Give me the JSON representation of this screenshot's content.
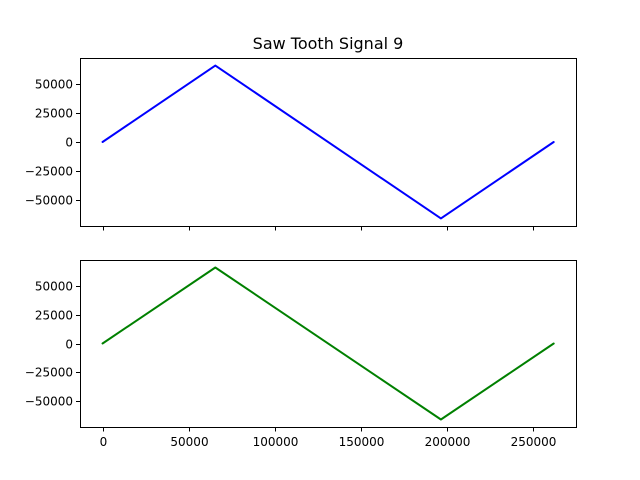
{
  "chart_data": {
    "type": "line",
    "title": "Saw Tooth Signal 9",
    "xlim": [
      -13100,
      275100
    ],
    "x_ticks": [
      0,
      50000,
      100000,
      150000,
      200000,
      250000
    ],
    "x_tick_labels": [
      "0",
      "50000",
      "100000",
      "150000",
      "200000",
      "250000"
    ],
    "y_ticks": [
      50000,
      25000,
      0,
      -25000,
      -50000
    ],
    "y_tick_labels": [
      "50000",
      "25000",
      "0",
      "−25000",
      "−50000"
    ],
    "subplots": [
      {
        "ylim": [
          -72000,
          72000
        ],
        "series": [
          {
            "color": "#0000ff",
            "x": [
              0,
              65536,
              196608,
              262143
            ],
            "y": [
              0,
              65535,
              -65535,
              0
            ]
          }
        ]
      },
      {
        "ylim": [
          -72000,
          72000
        ],
        "series": [
          {
            "color": "#008000",
            "x": [
              0,
              65536,
              196608,
              262143
            ],
            "y": [
              0,
              65535,
              -65535,
              0
            ]
          }
        ]
      }
    ]
  }
}
